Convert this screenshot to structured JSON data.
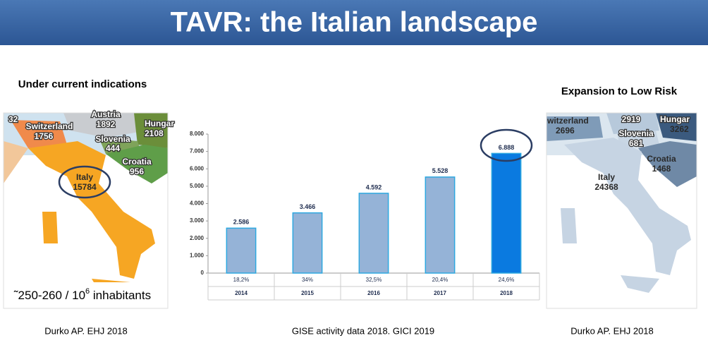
{
  "title": "TAVR: the Italian landscape",
  "left_map": {
    "heading": "Under current indications",
    "labels": [
      {
        "name": "Switzerland",
        "value": 1756
      },
      {
        "name": "Austria",
        "value": 1892
      },
      {
        "name": "Hungar",
        "value": 2108
      },
      {
        "name": "Slovenia",
        "value": 444
      },
      {
        "name": "Croatia",
        "value": 956
      },
      {
        "name": "Italy",
        "value": 15784
      }
    ],
    "corner_value": 32,
    "note": {
      "prefix": "˜250-260 / 10",
      "exponent": "6",
      "suffix": " inhabitants"
    },
    "source": "Durko AP. EHJ 2018"
  },
  "right_map": {
    "heading": "Expansion to Low Risk",
    "labels": [
      {
        "name": "witzerland",
        "value": 2696
      },
      {
        "name": "Hungar",
        "value": 3262
      },
      {
        "name": "Slovenia",
        "value": 681
      },
      {
        "name": "Croatia",
        "value": 1468
      },
      {
        "name": "Italy",
        "value": 24368
      }
    ],
    "austria_value": 2919,
    "source": "Durko AP. EHJ 2018"
  },
  "chart_data": {
    "type": "bar",
    "categories": [
      "2014",
      "2015",
      "2016",
      "2017",
      "2018"
    ],
    "values": [
      2586,
      3466,
      4592,
      5528,
      6888
    ],
    "value_labels": [
      "2.586",
      "3.466",
      "4.592",
      "5.528",
      "6.888"
    ],
    "colors": [
      "#95b3d7",
      "#95b3d7",
      "#95b3d7",
      "#95b3d7",
      "#0a7ae0"
    ],
    "growth_labels": [
      "18,2%",
      "34%",
      "32,5%",
      "20,4%",
      "24,6%"
    ],
    "ylim": [
      0,
      8000
    ],
    "yticks": [
      0,
      {
        "value": 1000,
        "label": "1.000"
      },
      {
        "value": 2000,
        "label": "2.000"
      },
      {
        "value": 3000,
        "label": "3.000"
      },
      {
        "value": 4000,
        "label": "4.000"
      },
      {
        "value": 5000,
        "label": "5.000"
      },
      {
        "value": 6000,
        "label": "6.000"
      },
      {
        "value": 7000,
        "label": "7.000"
      },
      {
        "value": 8000,
        "label": "8.000"
      }
    ],
    "source": "GISE activity data 2018. GICI 2019"
  }
}
